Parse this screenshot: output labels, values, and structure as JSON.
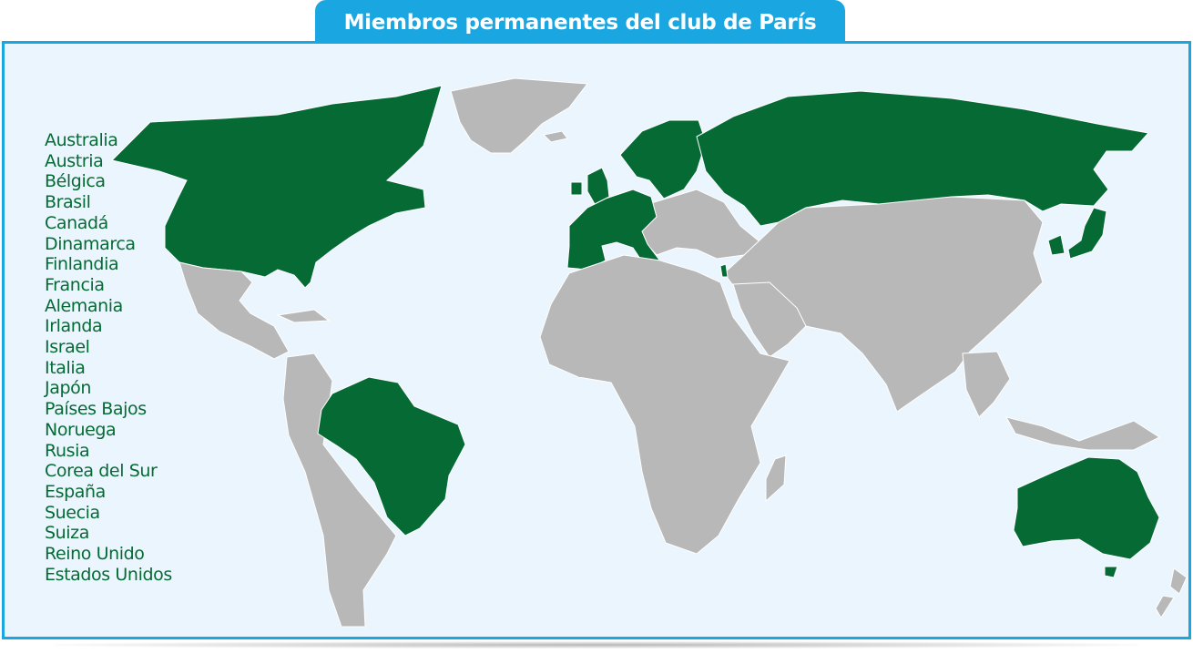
{
  "title": "Miembros permanentes del club de París",
  "colors": {
    "accent": "#1aa6e0",
    "member_fill": "#066a35",
    "land_fill": "#b8b8b8",
    "ocean": "#eaf5fd"
  },
  "members": [
    "Australia",
    "Austria",
    "Bélgica",
    "Brasil",
    "Canadá",
    "Dinamarca",
    "Finlandia",
    "Francia",
    "Alemania",
    "Irlanda",
    "Israel",
    "Italia",
    "Japón",
    "Países Bajos",
    "Noruega",
    "Rusia",
    "Corea del Sur",
    "España",
    "Suecia",
    "Suiza",
    "Reino Unido",
    "Estados Unidos"
  ]
}
